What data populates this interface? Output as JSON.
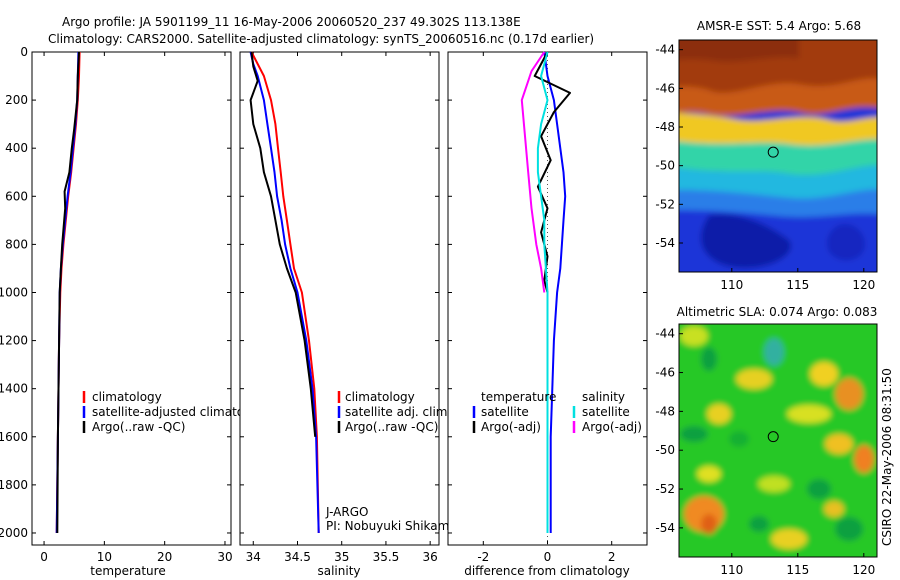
{
  "header": {
    "title_line1": "Argo profile: JA 5901199_11 16-May-2006 20060520_237 49.302S 113.138E",
    "title_line2": "Climatology: CARS2000. Satellite-adjusted climatology: synTS_20060516.nc (0.17d earlier)"
  },
  "footer": {
    "vertical_stamp": "CSIRO 22-May-2006 08:31:50"
  },
  "colors": {
    "climatology": "#ff0000",
    "satellite": "#0000ff",
    "argo": "#000000",
    "sal_satellite": "#00e0e0",
    "sal_argo": "#ff00ff",
    "marker": "#000000"
  },
  "chart_data": [
    {
      "type": "line",
      "id": "temperature",
      "xlabel": "temperature",
      "ylabel": "",
      "xlim": [
        -2,
        31
      ],
      "ylim": [
        2050,
        0
      ],
      "xticks": [
        0,
        10,
        20,
        30
      ],
      "yticks": [
        0,
        200,
        400,
        600,
        800,
        1000,
        1200,
        1400,
        1600,
        1800,
        2000
      ],
      "legend": [
        "climatology",
        "satellite-adjusted climatology",
        "Argo(..raw -QC)"
      ],
      "series": [
        {
          "name": "climatology",
          "color_key": "climatology",
          "x": [
            5.9,
            5.8,
            5.6,
            5.3,
            4.9,
            4.5,
            4.0,
            3.6,
            3.2,
            2.9,
            2.7,
            2.5,
            2.4,
            2.3,
            2.2,
            2.1
          ],
          "y": [
            0,
            100,
            200,
            300,
            400,
            500,
            600,
            700,
            800,
            900,
            1000,
            1200,
            1400,
            1600,
            1800,
            2000
          ]
        },
        {
          "name": "satellite-adjusted climatology",
          "color_key": "satellite",
          "x": [
            5.7,
            5.6,
            5.5,
            5.2,
            4.8,
            4.4,
            3.9,
            3.5,
            3.1,
            2.8,
            2.6,
            2.5,
            2.4,
            2.3,
            2.2,
            2.1
          ],
          "y": [
            0,
            100,
            200,
            300,
            400,
            500,
            600,
            700,
            800,
            900,
            1000,
            1200,
            1400,
            1600,
            1800,
            2000
          ]
        },
        {
          "name": "Argo(..raw -QC)",
          "color_key": "argo",
          "x": [
            5.8,
            5.6,
            5.5,
            5.0,
            4.6,
            4.2,
            3.4,
            3.5,
            3.0,
            2.8,
            2.6,
            2.5,
            2.4,
            2.3,
            2.2
          ],
          "y": [
            0,
            100,
            200,
            320,
            400,
            500,
            580,
            650,
            800,
            900,
            1000,
            1200,
            1400,
            1600,
            2000
          ]
        }
      ]
    },
    {
      "type": "line",
      "id": "salinity",
      "xlabel": "salinity",
      "ylabel": "",
      "xlim": [
        33.85,
        36.1
      ],
      "ylim": [
        2050,
        0
      ],
      "xticks": [
        34,
        34.5,
        35,
        35.5,
        36
      ],
      "xticklabels": [
        "34",
        "34.5",
        "35",
        "35.5",
        "36"
      ],
      "legend": [
        "climatology",
        "satellite adj. clim.",
        "Argo(..raw -QC)"
      ],
      "annotations": [
        "J-ARGO",
        "PI: Nobuyuki Shikama"
      ],
      "series": [
        {
          "name": "climatology",
          "color_key": "climatology",
          "x": [
            33.98,
            34.05,
            34.12,
            34.2,
            34.25,
            34.28,
            34.31,
            34.34,
            34.38,
            34.42,
            34.46,
            34.55,
            34.63,
            34.69,
            34.72,
            34.74
          ],
          "y": [
            0,
            50,
            100,
            200,
            300,
            400,
            500,
            600,
            700,
            800,
            900,
            1000,
            1200,
            1400,
            1600,
            2000
          ]
        },
        {
          "name": "satellite adj. clim.",
          "color_key": "satellite",
          "x": [
            33.97,
            34.0,
            34.05,
            34.12,
            34.16,
            34.2,
            34.24,
            34.27,
            34.32,
            34.36,
            34.42,
            34.5,
            34.6,
            34.67,
            34.71,
            34.74
          ],
          "y": [
            0,
            50,
            100,
            200,
            300,
            400,
            500,
            600,
            700,
            800,
            900,
            1000,
            1200,
            1400,
            1600,
            2000
          ]
        },
        {
          "name": "Argo(..raw -QC)",
          "color_key": "argo",
          "x": [
            33.98,
            34.0,
            34.05,
            33.97,
            34.0,
            34.08,
            34.12,
            34.2,
            34.25,
            34.3,
            34.38,
            34.48,
            34.58,
            34.65,
            34.7
          ],
          "y": [
            0,
            60,
            120,
            200,
            300,
            400,
            500,
            600,
            700,
            800,
            900,
            1000,
            1200,
            1400,
            1600
          ]
        }
      ]
    },
    {
      "type": "line",
      "id": "difference",
      "xlabel": "difference from climatology",
      "ylabel": "",
      "xlim": [
        -3.1,
        3.1
      ],
      "ylim": [
        2050,
        0
      ],
      "xticks": [
        -2,
        0,
        2
      ],
      "legend_groups": {
        "temperature": [
          "satellite",
          "Argo(-adj)"
        ],
        "salinity": [
          "satellite",
          "Argo(-adj)"
        ]
      },
      "series": [
        {
          "name": "temperature satellite",
          "color_key": "satellite",
          "x": [
            -0.1,
            0.0,
            0.2,
            0.3,
            0.4,
            0.5,
            0.55,
            0.5,
            0.45,
            0.4,
            0.3,
            0.2,
            0.15,
            0.1,
            0.1,
            0.1
          ],
          "y": [
            0,
            100,
            200,
            300,
            400,
            500,
            600,
            700,
            800,
            900,
            1000,
            1200,
            1400,
            1600,
            1800,
            2000
          ]
        },
        {
          "name": "temperature Argo(-adj)",
          "color_key": "argo",
          "x": [
            0.0,
            -0.4,
            0.7,
            0.2,
            -0.2,
            0.1,
            -0.3,
            0.0,
            -0.2,
            0.0,
            -0.1,
            0.0,
            0.0
          ],
          "y": [
            0,
            100,
            170,
            250,
            350,
            450,
            560,
            650,
            750,
            850,
            950,
            1000,
            1050
          ]
        },
        {
          "name": "salinity satellite",
          "color_key": "sal_satellite",
          "x": [
            0.0,
            -0.2,
            0.0,
            -0.2,
            -0.3,
            -0.3,
            -0.2,
            -0.1,
            -0.1,
            -0.05,
            0.0,
            0.0,
            0.0
          ],
          "y": [
            0,
            100,
            200,
            300,
            400,
            500,
            600,
            700,
            800,
            900,
            1000,
            1400,
            2000
          ]
        },
        {
          "name": "salinity Argo(-adj)",
          "color_key": "sal_argo",
          "x": [
            -0.1,
            -0.5,
            -0.8,
            -0.7,
            -0.6,
            -0.5,
            -0.35,
            -0.2,
            -0.1
          ],
          "y": [
            0,
            80,
            200,
            350,
            500,
            650,
            800,
            900,
            1000
          ]
        }
      ]
    },
    {
      "type": "heatmap",
      "id": "sst_map",
      "title": "AMSR-E SST: 5.4 Argo: 5.68",
      "xlim": [
        106,
        121
      ],
      "ylim": [
        -55.5,
        -43.5
      ],
      "xticks": [
        110,
        115,
        120
      ],
      "yticks": [
        -44,
        -46,
        -48,
        -50,
        -52,
        -54
      ],
      "marker": {
        "lon": 113.138,
        "lat": -49.302
      }
    },
    {
      "type": "heatmap",
      "id": "sla_map",
      "title": "Altimetric SLA: 0.074 Argo: 0.083",
      "xlim": [
        106,
        121
      ],
      "ylim": [
        -55.5,
        -43.5
      ],
      "xticks": [
        110,
        115,
        120
      ],
      "yticks": [
        -44,
        -46,
        -48,
        -50,
        -52,
        -54
      ],
      "marker": {
        "lon": 113.138,
        "lat": -49.302
      }
    }
  ]
}
